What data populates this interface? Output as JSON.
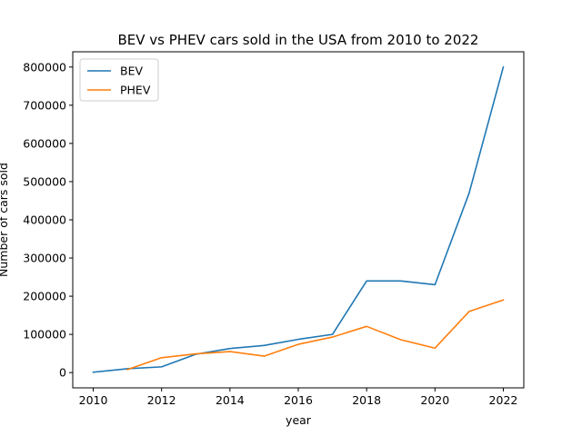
{
  "chart_data": {
    "type": "line",
    "title": "BEV vs PHEV cars sold in the USA from 2010 to 2022",
    "xlabel": "year",
    "ylabel": "Number of cars sold",
    "xlim": [
      2009.4,
      2022.6
    ],
    "ylim": [
      -40000,
      840000
    ],
    "xticks": [
      2010,
      2012,
      2014,
      2016,
      2018,
      2020,
      2022
    ],
    "yticks": [
      0,
      100000,
      200000,
      300000,
      400000,
      500000,
      600000,
      700000,
      800000
    ],
    "grid": false,
    "legend_position": "top-left",
    "series": [
      {
        "name": "BEV",
        "color": "#1f77b4",
        "x": [
          2010,
          2011,
          2012,
          2013,
          2014,
          2015,
          2016,
          2017,
          2018,
          2019,
          2020,
          2021,
          2022
        ],
        "values": [
          1000,
          10000,
          15000,
          48000,
          63000,
          71000,
          87000,
          100000,
          240000,
          240000,
          230000,
          470000,
          800000
        ]
      },
      {
        "name": "PHEV",
        "color": "#ff7f0e",
        "x": [
          2011,
          2012,
          2013,
          2014,
          2015,
          2016,
          2017,
          2018,
          2019,
          2020,
          2021,
          2022
        ],
        "values": [
          8000,
          39000,
          49000,
          55000,
          43000,
          74000,
          93000,
          121000,
          86000,
          64000,
          160000,
          190000
        ]
      }
    ]
  }
}
